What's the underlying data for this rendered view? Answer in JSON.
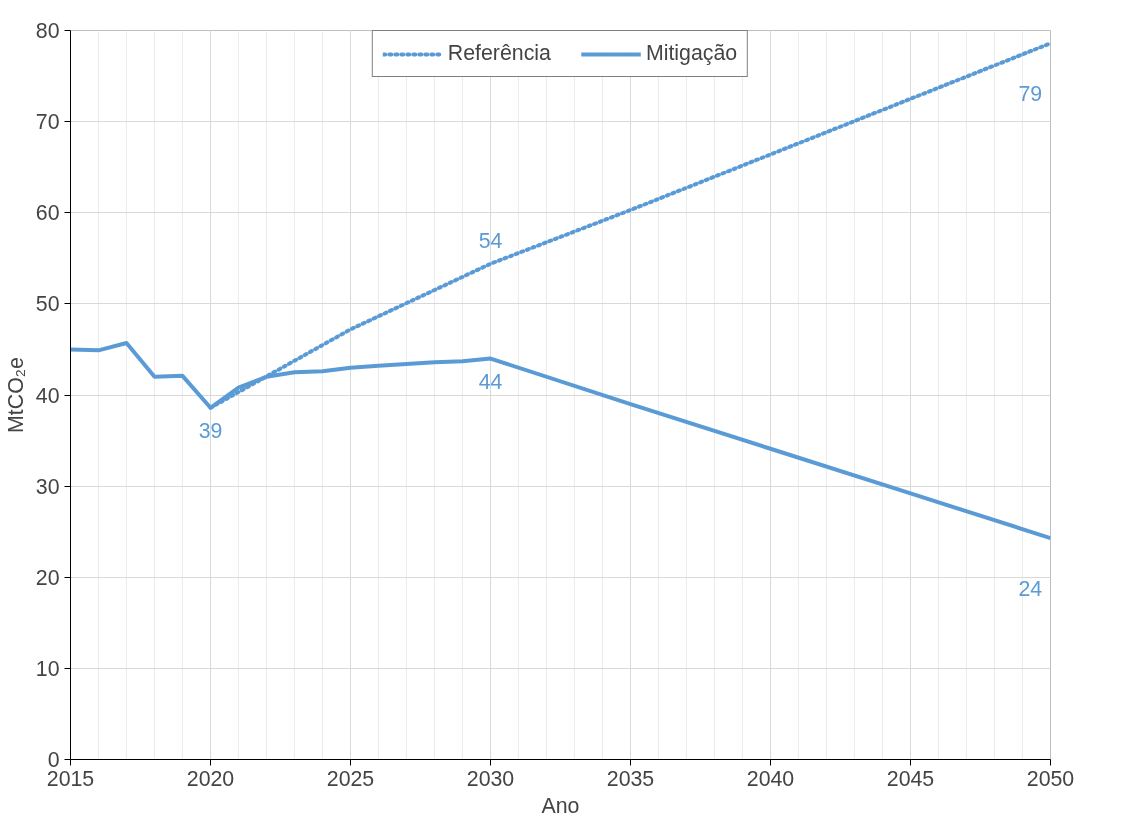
{
  "chart_data": {
    "type": "line",
    "xlabel": "Ano",
    "ylabel": "MtCO₂e",
    "xlim": [
      2015,
      2050
    ],
    "ylim": [
      0,
      80
    ],
    "xticks": [
      2015,
      2020,
      2025,
      2030,
      2035,
      2040,
      2045,
      2050
    ],
    "yticks": [
      0,
      10,
      20,
      30,
      40,
      50,
      60,
      70,
      80
    ],
    "grid": true,
    "legend": "top",
    "marker": "none",
    "series": [
      {
        "name": "Referência",
        "color": "#5b9bd5",
        "line_style": "dotted",
        "x": [
          2020,
          2025,
          2030,
          2035,
          2040,
          2045,
          2050
        ],
        "values": [
          38.6,
          47.2,
          54.4,
          60.3,
          66.4,
          72.5,
          78.6
        ],
        "value_labels": [
          null,
          null,
          "54",
          null,
          null,
          null,
          "79"
        ]
      },
      {
        "name": "Mitigação",
        "color": "#5b9bd5",
        "line_style": "solid",
        "x": [
          2015,
          2016,
          2017,
          2018,
          2019,
          2020,
          2021,
          2022,
          2023,
          2024,
          2025,
          2026,
          2027,
          2028,
          2029,
          2030,
          2035,
          2040,
          2045,
          2050
        ],
        "values": [
          45.0,
          44.9,
          45.7,
          42.0,
          42.1,
          38.6,
          40.8,
          42.0,
          42.5,
          42.6,
          43.0,
          43.2,
          43.4,
          43.6,
          43.7,
          44.0,
          39.0,
          34.1,
          29.2,
          24.3
        ],
        "value_labels": [
          null,
          null,
          null,
          null,
          null,
          "39",
          null,
          null,
          null,
          null,
          null,
          null,
          null,
          null,
          null,
          "44",
          null,
          null,
          null,
          "24"
        ]
      }
    ]
  }
}
